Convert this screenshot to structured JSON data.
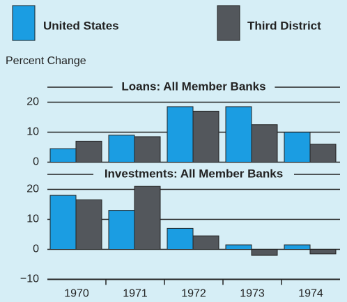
{
  "chart_data": [
    {
      "type": "bar",
      "title": "Loans:  All Member Banks",
      "y_label": "Percent Change",
      "series": [
        {
          "name": "United States",
          "color": "#1b9de2",
          "values": [
            4.5,
            9,
            18.5,
            18.5,
            10
          ]
        },
        {
          "name": "Third District",
          "color": "#53575c",
          "values": [
            7,
            8.5,
            17,
            12.5,
            6
          ]
        }
      ],
      "ylim": [
        0,
        25
      ],
      "yticks": [
        0,
        10,
        20
      ],
      "grid": true
    },
    {
      "type": "bar",
      "title": "Investments:  All Member Banks",
      "categories": [
        "1970",
        "1971",
        "1972",
        "1973",
        "1974"
      ],
      "series": [
        {
          "name": "United States",
          "color": "#1b9de2",
          "values": [
            18,
            13,
            7,
            1.5,
            1.5
          ]
        },
        {
          "name": "Third District",
          "color": "#53575c",
          "values": [
            16.5,
            21,
            4.5,
            -2,
            -1.5
          ]
        }
      ],
      "ylim": [
        -10,
        25
      ],
      "yticks": [
        {
          "value": -10,
          "label": "−10"
        },
        0,
        10,
        20
      ],
      "grid": true
    }
  ]
}
